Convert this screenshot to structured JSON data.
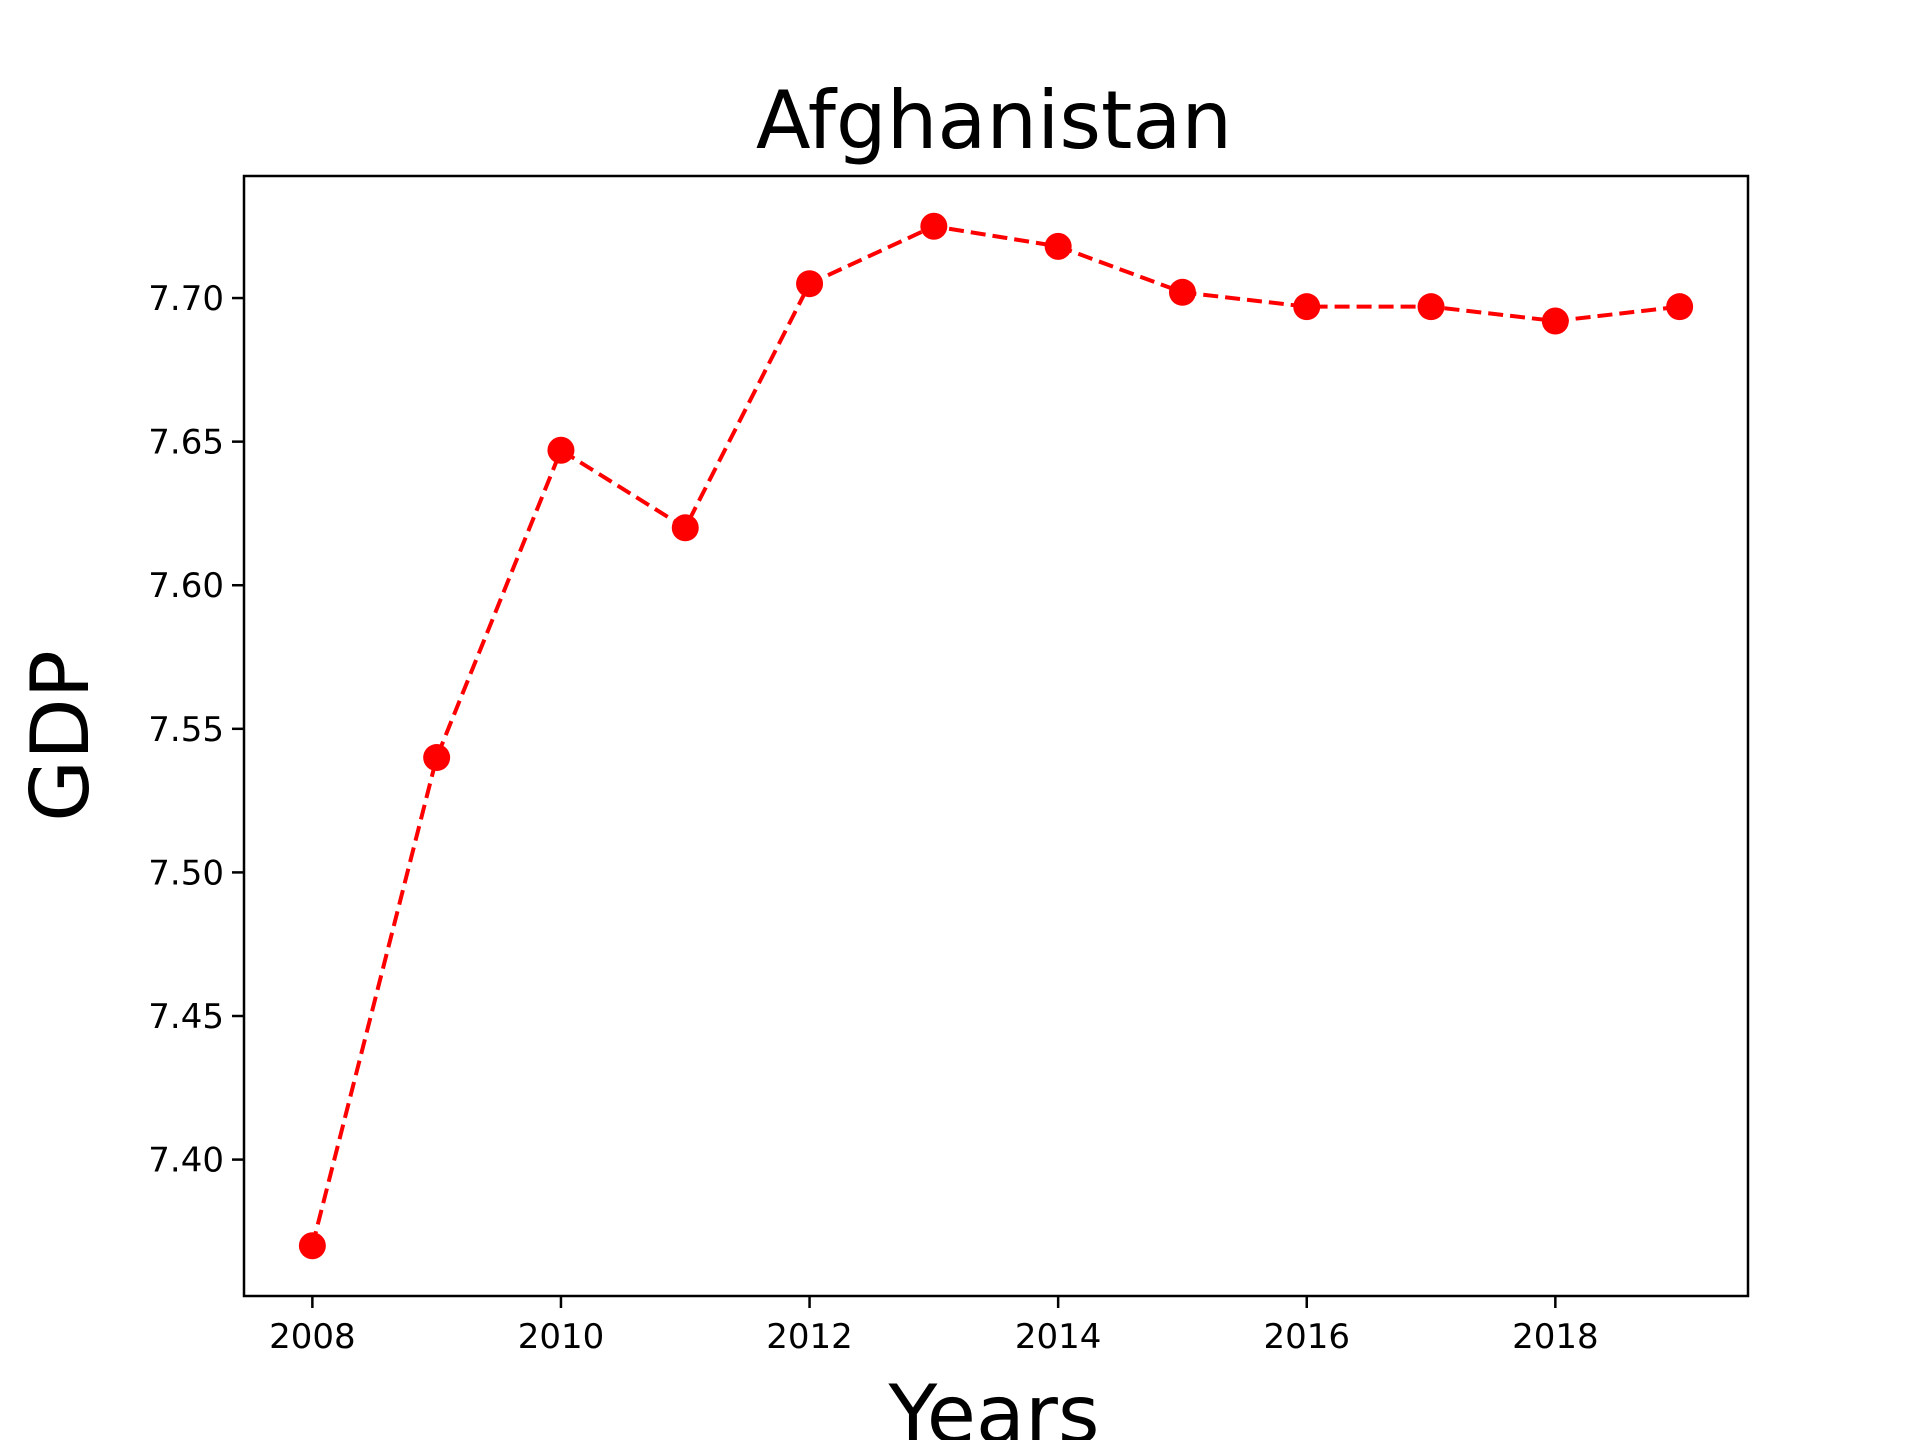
{
  "chart_data": {
    "type": "line",
    "title": "Afghanistan",
    "xlabel": "Years",
    "ylabel": "GDP",
    "x": [
      2008,
      2009,
      2010,
      2011,
      2012,
      2013,
      2014,
      2015,
      2016,
      2017,
      2018,
      2019
    ],
    "series": [
      {
        "values": [
          7.37,
          7.54,
          7.647,
          7.62,
          7.705,
          7.725,
          7.718,
          7.702,
          7.697,
          7.697,
          7.692,
          7.697
        ],
        "color": "#ff0000",
        "line_style": "dashed",
        "marker": "circle"
      }
    ],
    "xlim": [
      2007.45,
      2019.55
    ],
    "ylim": [
      7.3525,
      7.7425
    ],
    "xticks": [
      "2008",
      "2010",
      "2012",
      "2014",
      "2016",
      "2018"
    ],
    "yticks": [
      "7.40",
      "7.45",
      "7.50",
      "7.55",
      "7.60",
      "7.65",
      "7.70"
    ],
    "grid": false,
    "legend": "none"
  }
}
